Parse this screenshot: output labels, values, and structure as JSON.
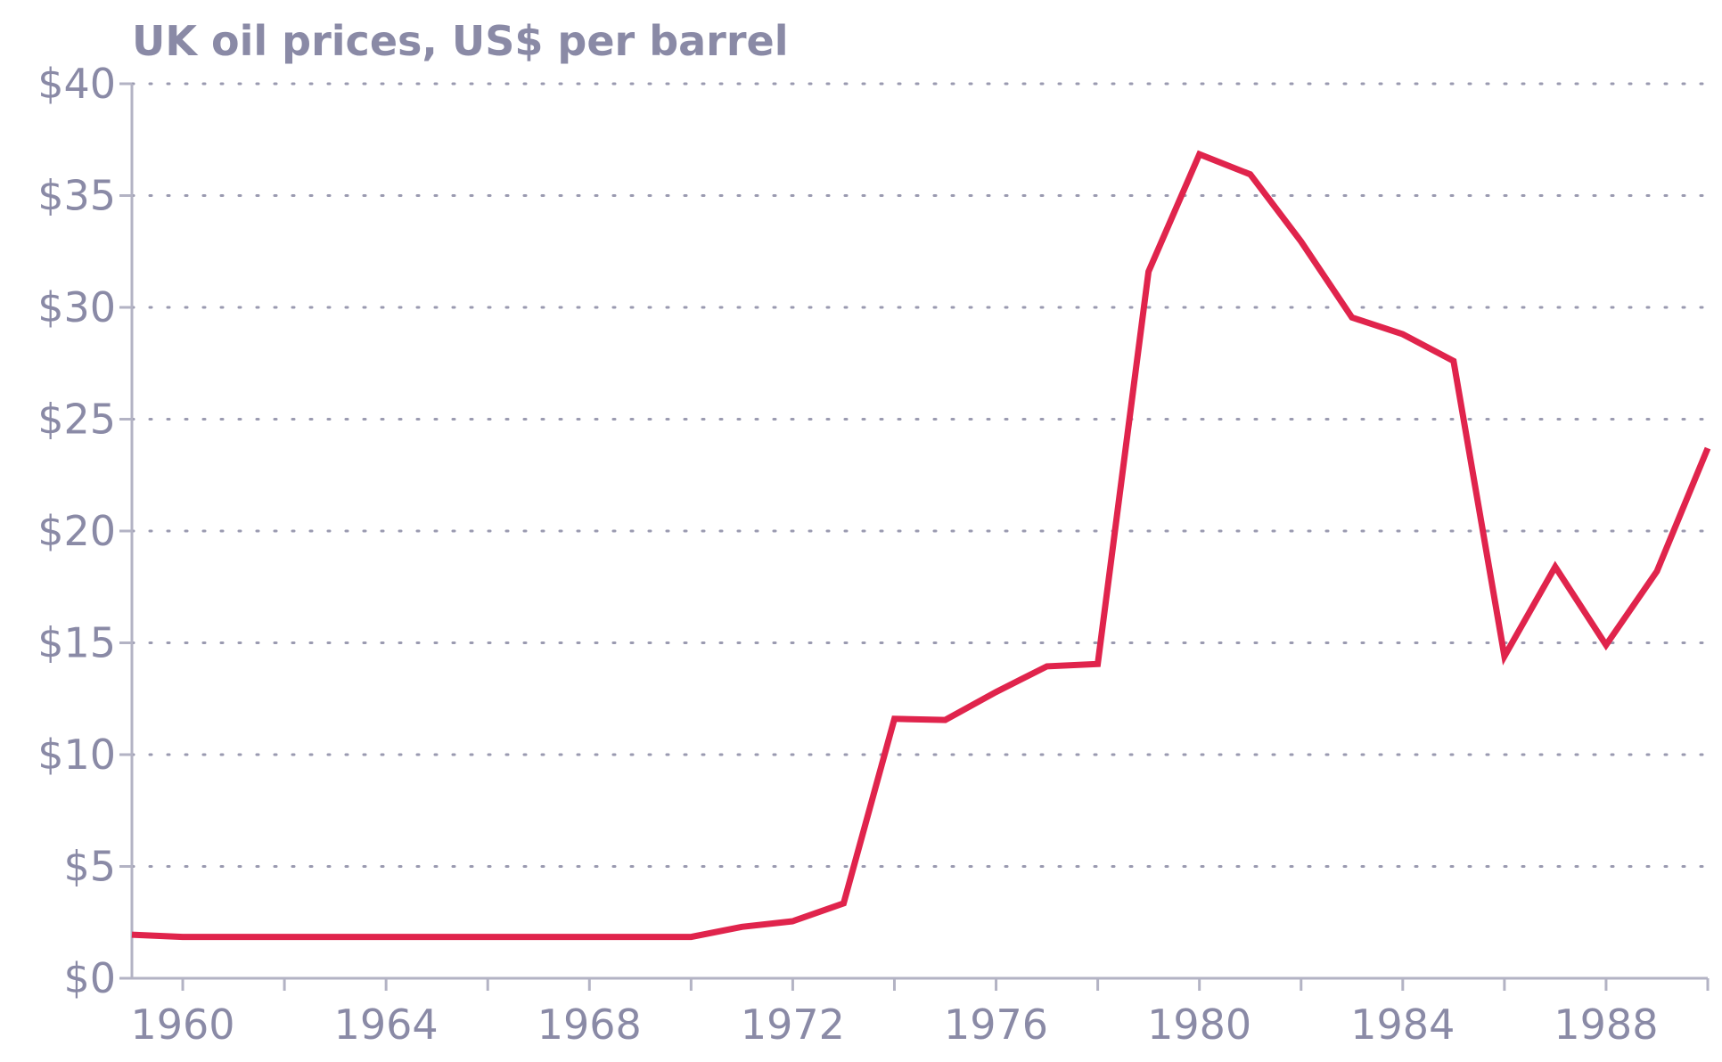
{
  "chart_data": {
    "type": "line",
    "title": "UK oil prices, US$ per barrel",
    "xlabel": "",
    "ylabel": "",
    "x": [
      1959,
      1960,
      1961,
      1962,
      1963,
      1964,
      1965,
      1966,
      1967,
      1968,
      1969,
      1970,
      1971,
      1972,
      1973,
      1974,
      1975,
      1976,
      1977,
      1978,
      1979,
      1980,
      1981,
      1982,
      1983,
      1984,
      1985,
      1986,
      1987,
      1988,
      1989,
      1990
    ],
    "series": [
      {
        "values": [
          1.95,
          1.85,
          1.85,
          1.85,
          1.85,
          1.85,
          1.85,
          1.85,
          1.85,
          1.85,
          1.85,
          1.85,
          2.3,
          2.55,
          3.35,
          11.6,
          11.55,
          12.8,
          13.95,
          14.05,
          31.6,
          36.85,
          35.95,
          32.95,
          29.55,
          28.8,
          27.6,
          14.4,
          18.4,
          14.9,
          18.2,
          23.7
        ],
        "color": "#e0244c"
      }
    ],
    "xlim": [
      1959,
      1990
    ],
    "ylim": [
      0,
      40
    ],
    "y_ticks": [
      0,
      5,
      10,
      15,
      20,
      25,
      30,
      35,
      40
    ],
    "y_tick_labels": [
      "$0",
      "$5",
      "$10",
      "$15",
      "$20",
      "$25",
      "$30",
      "$35",
      "$40"
    ],
    "x_ticks": [
      1960,
      1964,
      1968,
      1972,
      1976,
      1980,
      1984,
      1988
    ],
    "x_tick_labels": [
      "1960",
      "1964",
      "1968",
      "1972",
      "1976",
      "1980",
      "1984",
      "1988"
    ],
    "grid": "horizontal dotted",
    "legend": "none"
  }
}
